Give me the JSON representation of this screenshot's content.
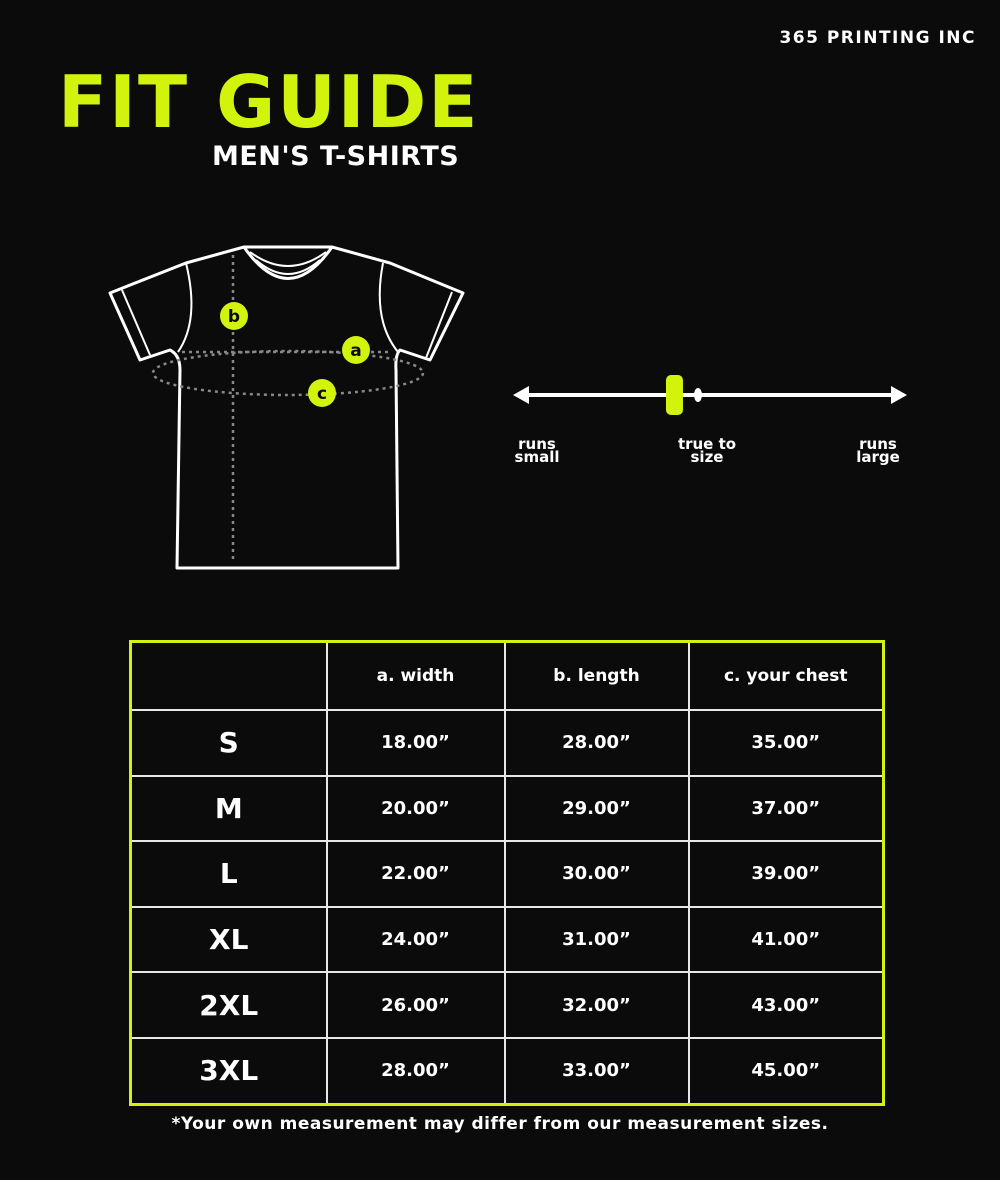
{
  "brand": "365 PRINTING INC",
  "title": "FIT GUIDE",
  "subtitle": "MEN'S T-SHIRTS",
  "colors": {
    "accent": "#d2f30c",
    "background": "#0b0b0b",
    "text": "#ffffff"
  },
  "diagram": {
    "markers": [
      "a",
      "b",
      "c"
    ]
  },
  "fit_scale": {
    "left_label": "runs small",
    "center_label": "true to size",
    "right_label": "runs large",
    "level": 0.41
  },
  "table": {
    "headers": [
      "",
      "a. width",
      "b. length",
      "c. your chest"
    ],
    "rows": [
      [
        "S",
        "18.00”",
        "28.00”",
        "35.00”"
      ],
      [
        "M",
        "20.00”",
        "29.00”",
        "37.00”"
      ],
      [
        "L",
        "22.00”",
        "30.00”",
        "39.00”"
      ],
      [
        "XL",
        "24.00”",
        "31.00”",
        "41.00”"
      ],
      [
        "2XL",
        "26.00”",
        "32.00”",
        "43.00”"
      ],
      [
        "3XL",
        "28.00”",
        "33.00”",
        "45.00”"
      ]
    ]
  },
  "note": "*Your own measurement may differ from our measurement sizes."
}
